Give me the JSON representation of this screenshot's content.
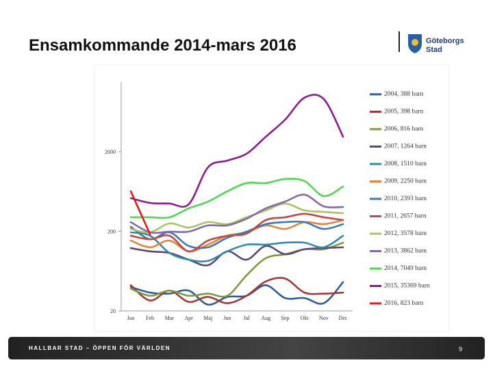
{
  "slide": {
    "title": "Ensamkommande 2014-mars 2016",
    "footer": "HALLBAR STAD – ÖPPEN FÖR VÄRLDEN",
    "page_number": 9,
    "logo": [
      "Göteborgs",
      "Stad"
    ]
  },
  "chart_data": {
    "type": "line",
    "log_scale": true,
    "grid": false,
    "legend": "right",
    "categories": [
      "Jan",
      "Feb",
      "Mar",
      "Apr",
      "Maj",
      "Jun",
      "Jul",
      "Aug",
      "Sep",
      "Okt",
      "Nov",
      "Dec"
    ],
    "ylim": [
      20,
      15000
    ],
    "yticks": [
      20,
      200,
      2000
    ],
    "series": [
      {
        "name": "2004, 388 barn",
        "color": "#2e5c9a",
        "values": [
          40,
          34,
          33,
          36,
          24,
          30,
          31,
          42,
          29,
          29,
          25,
          46
        ]
      },
      {
        "name": "2005, 398 barn",
        "color": "#a03a3a",
        "values": [
          42,
          27,
          36,
          26,
          30,
          25,
          31,
          47,
          51,
          34,
          33,
          34
        ]
      },
      {
        "name": "2006, 816 barn",
        "color": "#7f9a3c",
        "values": [
          38,
          31,
          36,
          31,
          33,
          31,
          56,
          92,
          103,
          119,
          119,
          144
        ]
      },
      {
        "name": "2007, 1264 barn",
        "color": "#5c4480",
        "values": [
          123,
          112,
          107,
          88,
          75,
          112,
          88,
          131,
          103,
          119,
          123,
          126
        ]
      },
      {
        "name": "2008, 1510 barn",
        "color": "#2e8ca8",
        "values": [
          194,
          176,
          107,
          88,
          85,
          112,
          136,
          136,
          144,
          144,
          126,
          176
        ]
      },
      {
        "name": "2009, 2250 barn",
        "color": "#e0873a",
        "values": [
          153,
          126,
          153,
          112,
          136,
          176,
          194,
          237,
          214,
          261,
          246,
          277
        ]
      },
      {
        "name": "2010, 2393 barn",
        "color": "#3a78b8",
        "values": [
          228,
          159,
          194,
          131,
          126,
          166,
          198,
          246,
          261,
          261,
          214,
          246
        ]
      },
      {
        "name": "2011, 2657 barn",
        "color": "#c04a44",
        "values": [
          176,
          159,
          176,
          112,
          153,
          176,
          187,
          277,
          300,
          331,
          300,
          277
        ]
      },
      {
        "name": "2012, 3578 barn",
        "color": "#a8c464",
        "values": [
          214,
          194,
          251,
          223,
          261,
          246,
          300,
          366,
          445,
          366,
          351,
          337
        ]
      },
      {
        "name": "2013, 3862 barn",
        "color": "#8468a8",
        "values": [
          261,
          194,
          198,
          198,
          237,
          237,
          288,
          388,
          472,
          576,
          411,
          404
        ]
      },
      {
        "name": "2014, 7049 barn",
        "color": "#4ed84e",
        "values": [
          300,
          300,
          300,
          388,
          472,
          636,
          806,
          806,
          908,
          855,
          554,
          730
        ]
      },
      {
        "name": "2015, 35369 barn",
        "color": "#8e1a8e",
        "values": [
          521,
          454,
          447,
          437,
          1270,
          1546,
          1885,
          3090,
          5060,
          9530,
          9160,
          3090
        ]
      },
      {
        "name": "2016, 823 barn",
        "color": "#e81818",
        "values": [
          636,
          183,
          null,
          null,
          null,
          null,
          null,
          null,
          null,
          null,
          null,
          null
        ]
      }
    ]
  }
}
